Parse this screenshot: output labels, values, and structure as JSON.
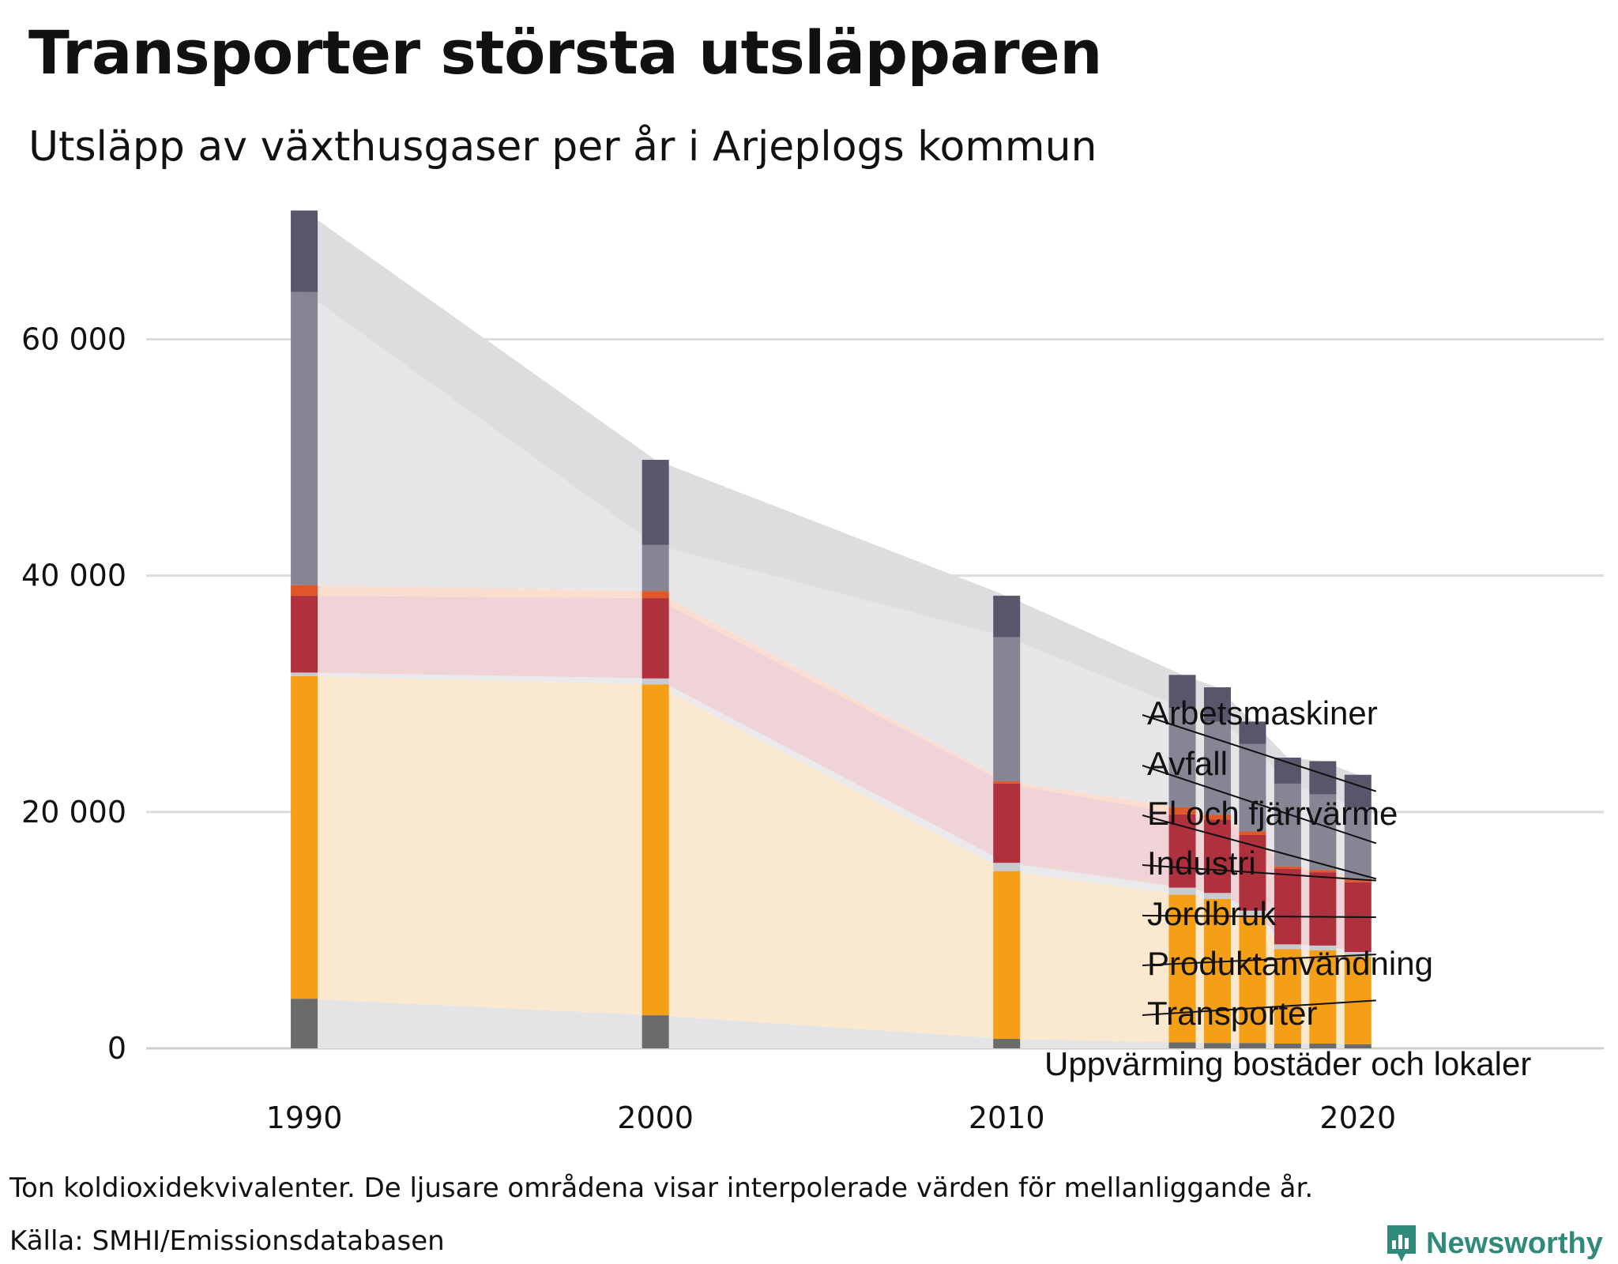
{
  "header": {
    "title": "Transporter största utsläpparen",
    "subtitle": "Utsläpp av växthusgaser per år i Arjeplogs kommun"
  },
  "footer": {
    "note": "Ton koldioxidekvivalenter. De ljusare områdena visar interpolerade värden för mellanliggande år.",
    "source": "Källa: SMHI/Emissionsdatabasen",
    "brand": "Newsworthy"
  },
  "colors": {
    "brand": "#2f8a7a",
    "grid": "#dcdcdc"
  },
  "chart_data": {
    "type": "bar",
    "stacked": true,
    "title": "Transporter största utsläpparen",
    "subtitle": "Utsläpp av växthusgaser per år i Arjeplogs kommun",
    "xlabel": "",
    "ylabel": "",
    "ylim": [
      0,
      72000
    ],
    "xlim": [
      1985.5,
      2027
    ],
    "yticks": [
      0,
      20000,
      40000,
      60000
    ],
    "ytick_labels": [
      "0",
      "20 000",
      "40 000",
      "60 000"
    ],
    "xticks": [
      1990,
      2000,
      2010,
      2020
    ],
    "xtick_labels": [
      "1990",
      "2000",
      "2010",
      "2020"
    ],
    "grid": true,
    "legend": "direct labels right",
    "categories": [
      1990,
      2000,
      2010,
      2015,
      2016,
      2017,
      2018,
      2019,
      2020
    ],
    "series": [
      {
        "name": "Uppvärming bostäder och lokaler",
        "color": "#6b6b6b",
        "band": "#e4e4e6",
        "values": [
          4200,
          2800,
          800,
          500,
          450,
          450,
          400,
          400,
          350
        ]
      },
      {
        "name": "Transporter",
        "color": "#f59f17",
        "band": "#fbe9cf",
        "values": [
          27300,
          28000,
          14200,
          12500,
          12200,
          10700,
          8000,
          7900,
          7400
        ]
      },
      {
        "name": "Produktanvändning",
        "color": "#c9c9d0",
        "band": "#eaeaec",
        "values": [
          300,
          500,
          700,
          600,
          500,
          500,
          400,
          400,
          400
        ]
      },
      {
        "name": "Jordbruk",
        "color": "#b0313e",
        "band": "#efd3d6",
        "values": [
          6500,
          6800,
          6700,
          6200,
          6200,
          6400,
          6400,
          6200,
          5900
        ]
      },
      {
        "name": "Industri",
        "color": "#e0572a",
        "band": "#fbddd0",
        "values": [
          900,
          600,
          200,
          600,
          400,
          300,
          200,
          200,
          300
        ]
      },
      {
        "name": "El och fjärrvärme",
        "color": "#f08a61",
        "band": "#fce6da",
        "values": [
          0,
          0,
          0,
          0,
          0,
          0,
          0,
          0,
          0
        ]
      },
      {
        "name": "Avfall",
        "color": "#868594",
        "band": "#e6e6e9",
        "values": [
          24800,
          3900,
          12200,
          8400,
          7900,
          7400,
          7000,
          6400,
          6000
        ]
      },
      {
        "name": "Arbetsmaskiner",
        "color": "#57566a",
        "band": "#dddde0",
        "values": [
          6900,
          7200,
          3500,
          2800,
          2900,
          1900,
          2200,
          2800,
          2800
        ]
      }
    ]
  }
}
